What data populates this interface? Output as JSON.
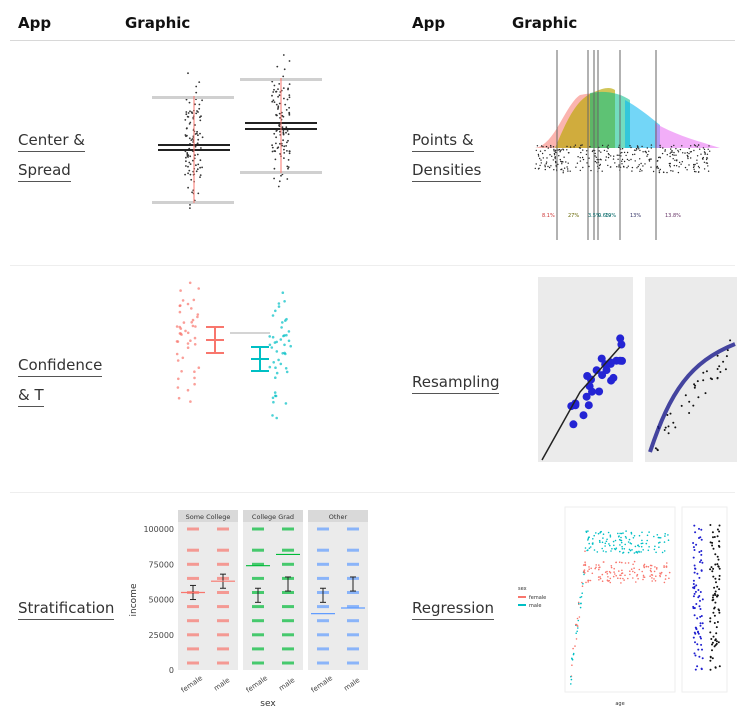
{
  "header": {
    "col1_app": "App",
    "col1_graphic": "Graphic",
    "col2_app": "App",
    "col2_graphic": "Graphic"
  },
  "apps": {
    "center_spread": [
      "Center &",
      "Spread"
    ],
    "points_densities": [
      "Points &",
      "Densities"
    ],
    "confidence_t": [
      "Confidence",
      "& T"
    ],
    "resampling": [
      "Resampling"
    ],
    "stratification": [
      "Stratification"
    ],
    "regression": [
      "Regression"
    ]
  },
  "colors": {
    "female": "#f8766d",
    "male": "#00bfc4",
    "panel_bg": "#ebebeb",
    "strip_bg": "#d9d9d9",
    "green": "#00ba38",
    "blue": "#619cff",
    "resample_point": "#2424d4"
  },
  "stratification": {
    "chart_data": {
      "type": "scatter",
      "panels": [
        "Some College",
        "College Grad",
        "Other"
      ],
      "categories": [
        "female",
        "male"
      ],
      "xlabel": "sex",
      "ylabel": "income",
      "yticks": [
        "0",
        "25000",
        "50000",
        "75000",
        "100000"
      ],
      "ylim": [
        0,
        105000
      ],
      "series": [
        {
          "panel": "Some College",
          "mean": [
            55000,
            63000
          ],
          "median": [
            55000,
            63000
          ]
        },
        {
          "panel": "College Grad",
          "mean": [
            53000,
            61000
          ],
          "median": [
            74000,
            82000
          ]
        },
        {
          "panel": "Other",
          "mean": [
            53000,
            61000
          ],
          "median": [
            40000,
            44000
          ]
        }
      ]
    }
  },
  "points_densities": {
    "labels": [
      "8.1%",
      "27%",
      "3.5%",
      "0.6%",
      "19%",
      "13%",
      "13.8%"
    ]
  },
  "regression": {
    "legend_title": "sex",
    "legend_items": [
      "female",
      "male"
    ],
    "x_label": "age"
  }
}
